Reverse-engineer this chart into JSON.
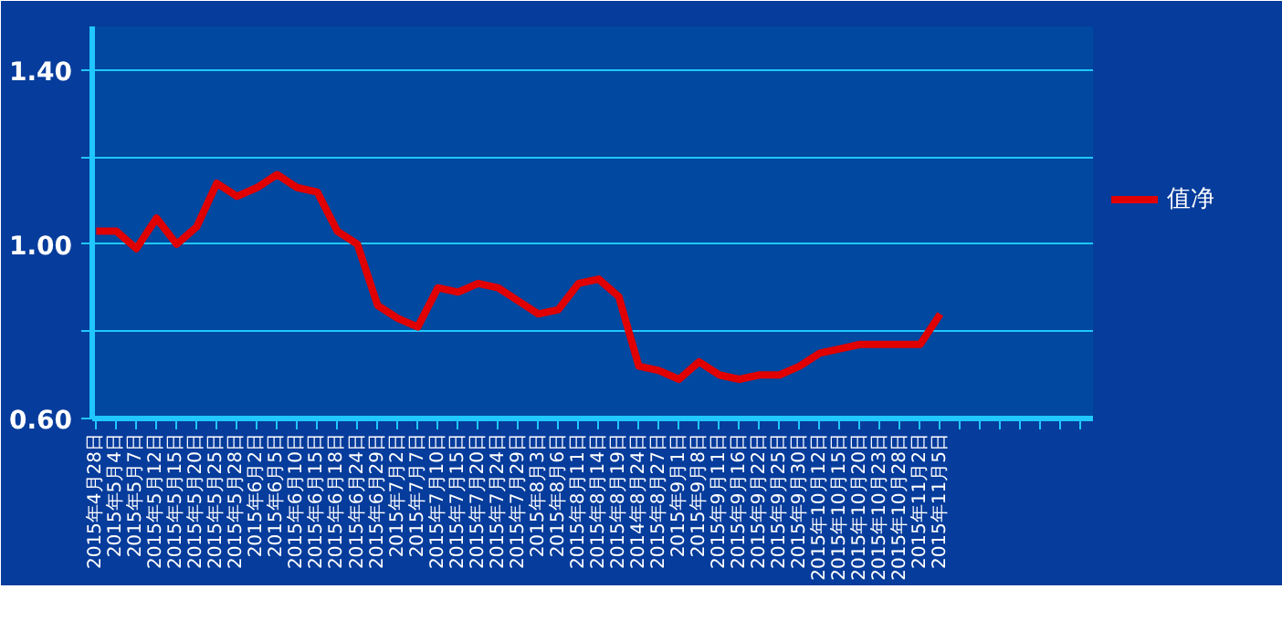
{
  "chart_data": {
    "type": "line",
    "categories": [
      "2015年4月28日",
      "2015年5月4日",
      "2015年5月7日",
      "2015年5月12日",
      "2015年5月15日",
      "2015年5月20日",
      "2015年5月25日",
      "2015年5月28日",
      "2015年6月2日",
      "2015年6月5日",
      "2015年6月10日",
      "2015年6月15日",
      "2015年6月18日",
      "2015年6月24日",
      "2015年6月29日",
      "2015年7月2日",
      "2015年7月7日",
      "2015年7月10日",
      "2015年7月15日",
      "2015年7月20日",
      "2015年7月24日",
      "2015年7月29日",
      "2015年8月3日",
      "2015年8月6日",
      "2015年8月11日",
      "2015年8月14日",
      "2015年8月19日",
      "2014年8月24日",
      "2015年8月27日",
      "2015年9月1日",
      "2015年9月8日",
      "2015年9月11日",
      "2015年9月16日",
      "2015年9月22日",
      "2015年9月25日",
      "2015年9月30日",
      "2015年10月12日",
      "2015年10月15日",
      "2015年10月20日",
      "2015年10月23日",
      "2015年10月28日",
      "2015年11月2日",
      "2015年11月5日",
      null,
      null,
      null,
      null,
      null,
      null,
      null
    ],
    "series": [
      {
        "name": "值净",
        "color": "#e00000",
        "values": [
          1.03,
          1.03,
          0.99,
          1.06,
          1.0,
          1.04,
          1.14,
          1.11,
          1.13,
          1.16,
          1.13,
          1.12,
          1.03,
          1.0,
          0.86,
          0.83,
          0.81,
          0.9,
          0.89,
          0.91,
          0.9,
          0.87,
          0.84,
          0.85,
          0.91,
          0.92,
          0.88,
          0.72,
          0.71,
          0.69,
          0.73,
          0.7,
          0.69,
          0.7,
          0.7,
          0.72,
          0.75,
          0.76,
          0.77,
          0.77,
          0.77,
          0.77,
          0.84,
          null,
          null,
          null,
          null,
          null,
          null,
          null
        ]
      }
    ],
    "ylim": [
      0.6,
      1.5
    ],
    "yticks": [
      {
        "value": 0.6,
        "label": "0.60"
      },
      {
        "value": 0.8,
        "label": null
      },
      {
        "value": 1.0,
        "label": "1.00"
      },
      {
        "value": 1.2,
        "label": null
      },
      {
        "value": 1.4,
        "label": "1.40"
      }
    ],
    "grid": "y",
    "legend": "right",
    "marker": "none",
    "line_style": "solid"
  }
}
